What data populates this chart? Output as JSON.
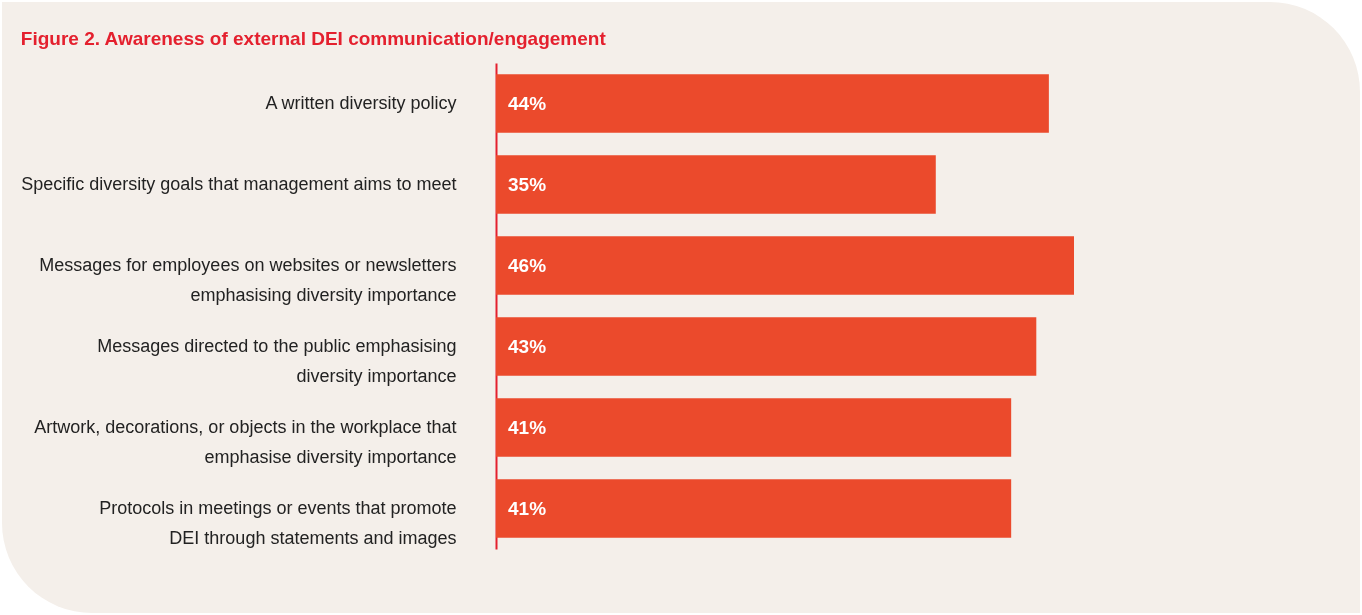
{
  "chart_data": {
    "type": "bar",
    "orientation": "horizontal",
    "title": "Figure 2. Awareness of external DEI communication/engagement",
    "categories": [
      "A written diversity policy",
      "Specific diversity goals that management aims to meet",
      "Messages for employees on websites or newsletters\nemphasising diversity importance",
      "Messages directed to the public emphasising\ndiversity importance",
      "Artwork, decorations, or objects in the workplace that\nemphasise diversity importance",
      "Protocols in meetings or events that promote\nDEI through statements and images"
    ],
    "values": [
      44,
      35,
      46,
      43,
      41,
      41
    ],
    "value_labels": [
      "44%",
      "35%",
      "46%",
      "43%",
      "41%",
      "41%"
    ],
    "color": "#eb4a2c"
  }
}
